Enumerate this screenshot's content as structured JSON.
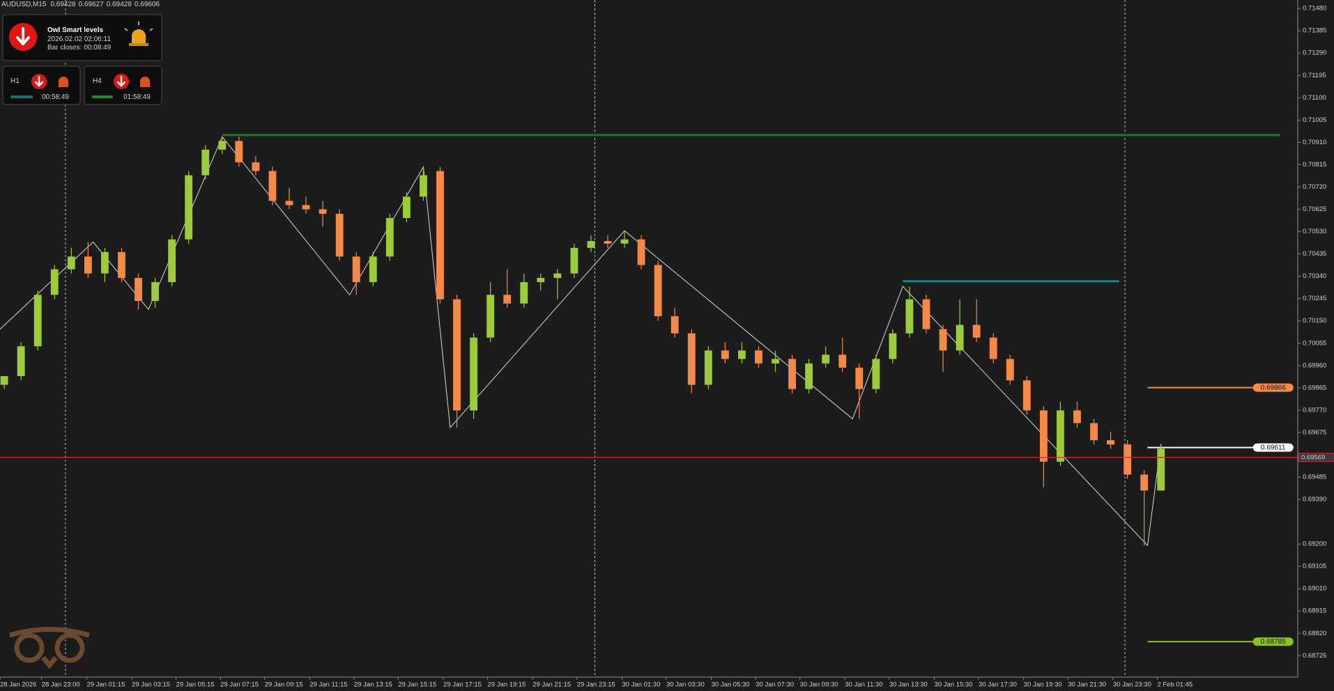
{
  "chart_data": {
    "type": "candlestick",
    "symbol": "AUDUSD,M15",
    "ohlc": [
      0.69428,
      0.69627,
      0.69428,
      0.69606
    ],
    "up_color": "#9ccb3b",
    "down_color": "#f58a48",
    "xlim": [
      -0.254,
      77.16
    ],
    "ylim": [
      0.68634,
      0.71516
    ],
    "open": [
      0.69878,
      0.69915,
      0.70042,
      0.70261,
      0.7037,
      0.70424,
      0.70352,
      0.70443,
      0.70333,
      0.70235,
      0.70315,
      0.70497,
      0.7077,
      0.70879,
      0.70916,
      0.70825,
      0.70788,
      0.70661,
      0.70643,
      0.70625,
      0.70606,
      0.70424,
      0.70315,
      0.70424,
      0.70588,
      0.70679,
      0.70788,
      0.70242,
      0.69769,
      0.70079,
      0.70261,
      0.70224,
      0.70315,
      0.70333,
      0.70352,
      0.70461,
      0.7049,
      0.70479,
      0.70497,
      0.70388,
      0.7017,
      0.70097,
      0.69878,
      0.70024,
      0.69988,
      0.70024,
      0.69969,
      0.69988,
      0.6986,
      0.69969,
      0.70006,
      0.69951,
      0.6986,
      0.69988,
      0.70097,
      0.70242,
      0.70115,
      0.70024,
      0.70133,
      0.70079,
      0.69988,
      0.69897,
      0.69769,
      0.69551,
      0.69769,
      0.69715,
      0.69642,
      0.69624,
      0.69496,
      0.69428
    ],
    "high": [
      0.69915,
      0.7006,
      0.70279,
      0.70388,
      0.70461,
      0.70486,
      0.70461,
      0.70461,
      0.70352,
      0.70333,
      0.70515,
      0.70788,
      0.70898,
      0.70934,
      0.70934,
      0.70852,
      0.70807,
      0.70716,
      0.70679,
      0.70661,
      0.70625,
      0.70443,
      0.70443,
      0.70606,
      0.70697,
      0.70806,
      0.70806,
      0.70261,
      0.70097,
      0.70315,
      0.7037,
      0.70352,
      0.70352,
      0.7037,
      0.70479,
      0.70515,
      0.70515,
      0.70534,
      0.70515,
      0.70406,
      0.70206,
      0.70115,
      0.70042,
      0.7006,
      0.7006,
      0.70042,
      0.70024,
      0.70006,
      0.69988,
      0.70042,
      0.70079,
      0.69969,
      0.70006,
      0.70115,
      0.70297,
      0.70261,
      0.70133,
      0.70242,
      0.70242,
      0.70097,
      0.70006,
      0.69915,
      0.69787,
      0.69806,
      0.69806,
      0.69733,
      0.69678,
      0.69642,
      0.69515,
      0.69627
    ],
    "low": [
      0.6986,
      0.69897,
      0.70024,
      0.70242,
      0.70352,
      0.70333,
      0.70315,
      0.70315,
      0.70199,
      0.70206,
      0.70297,
      0.70479,
      0.70752,
      0.70861,
      0.70807,
      0.7077,
      0.70643,
      0.70625,
      0.70606,
      0.70552,
      0.70406,
      0.70261,
      0.70297,
      0.70406,
      0.7057,
      0.70661,
      0.70224,
      0.69696,
      0.69733,
      0.7006,
      0.70206,
      0.70206,
      0.70279,
      0.70242,
      0.70333,
      0.70443,
      0.70461,
      0.70461,
      0.7037,
      0.70151,
      0.70079,
      0.69842,
      0.6986,
      0.69969,
      0.69969,
      0.69951,
      0.69933,
      0.69842,
      0.69842,
      0.69951,
      0.69933,
      0.69733,
      0.69842,
      0.69969,
      0.70079,
      0.70097,
      0.69933,
      0.70006,
      0.7006,
      0.69969,
      0.69878,
      0.69751,
      0.69442,
      0.69533,
      0.69696,
      0.69624,
      0.69605,
      0.69478,
      0.69194,
      0.69428
    ],
    "close": [
      0.69915,
      0.70042,
      0.70261,
      0.7037,
      0.70424,
      0.70352,
      0.70443,
      0.70333,
      0.70235,
      0.70315,
      0.70497,
      0.7077,
      0.70879,
      0.70916,
      0.70825,
      0.70788,
      0.70661,
      0.70643,
      0.70625,
      0.70606,
      0.70424,
      0.70315,
      0.70424,
      0.70588,
      0.70679,
      0.7077,
      0.70242,
      0.69769,
      0.70079,
      0.70261,
      0.70224,
      0.70315,
      0.70333,
      0.70352,
      0.70461,
      0.7049,
      0.70479,
      0.70497,
      0.70388,
      0.7017,
      0.70097,
      0.69878,
      0.70024,
      0.69988,
      0.70024,
      0.69969,
      0.69988,
      0.6986,
      0.69969,
      0.70006,
      0.69951,
      0.6986,
      0.69988,
      0.70097,
      0.70242,
      0.70115,
      0.70024,
      0.70133,
      0.70079,
      0.69988,
      0.69897,
      0.69769,
      0.69551,
      0.69769,
      0.69715,
      0.69642,
      0.69624,
      0.69496,
      0.69428,
      0.69606
    ],
    "zigzag": {
      "color": "#d8d8d8",
      "x": [
        -0.25,
        5.3,
        8.6,
        13,
        20.6,
        25,
        26.6,
        37,
        50.6,
        53.6,
        68.2,
        69
      ],
      "values": [
        0.70115,
        0.70486,
        0.70199,
        0.70934,
        0.70261,
        0.70806,
        0.69696,
        0.70534,
        0.69733,
        0.70297,
        0.69194,
        0.69627
      ]
    },
    "levels": [
      {
        "value": 0.70941,
        "x_from": 13,
        "x_to": 76.1,
        "color": "#1f7a1f",
        "labeled": false
      },
      {
        "value": 0.70319,
        "x_from": 53.6,
        "x_to": 66.5,
        "color": "#1b7f8c",
        "labeled": false
      },
      {
        "value": 0.69866,
        "x_from": 68.2,
        "x_to": 76.9,
        "color": "#f58a48",
        "labeled": true
      },
      {
        "value": 0.69611,
        "x_from": 68.2,
        "x_to": 76.9,
        "color": "#ffffff",
        "labeled": true
      },
      {
        "value": 0.68785,
        "x_from": 68.2,
        "x_to": 76.9,
        "color": "#8cc21e",
        "labeled": true
      }
    ],
    "bid": {
      "value": 0.69569,
      "color": "#d42a2a"
    },
    "period_separators": [
      3.65,
      35.23,
      66.85
    ],
    "yticks": [
      {
        "value": 0.7148,
        "label": "0.71480"
      },
      {
        "value": 0.71385,
        "label": "0.71385"
      },
      {
        "value": 0.7129,
        "label": "0.71290"
      },
      {
        "value": 0.71195,
        "label": "0.71195"
      },
      {
        "value": 0.711,
        "label": "0.71100"
      },
      {
        "value": 0.71005,
        "label": "0.71005"
      },
      {
        "value": 0.7091,
        "label": "0.70910"
      },
      {
        "value": 0.70815,
        "label": "0.70815"
      },
      {
        "value": 0.7072,
        "label": "0.70720"
      },
      {
        "value": 0.70625,
        "label": "0.70625"
      },
      {
        "value": 0.7053,
        "label": "0.70530"
      },
      {
        "value": 0.70435,
        "label": "0.70435"
      },
      {
        "value": 0.7034,
        "label": "0.70340"
      },
      {
        "value": 0.70245,
        "label": "0.70245"
      },
      {
        "value": 0.7015,
        "label": "0.70150"
      },
      {
        "value": 0.70055,
        "label": "0.70055"
      },
      {
        "value": 0.6996,
        "label": "0.69960"
      },
      {
        "value": 0.69865,
        "label": "0.69865"
      },
      {
        "value": 0.6977,
        "label": "0.69770"
      },
      {
        "value": 0.69675,
        "label": "0.69675"
      },
      {
        "value": 0.69485,
        "label": "0.69485"
      },
      {
        "value": 0.6939,
        "label": "0.69390"
      },
      {
        "value": 0.692,
        "label": "0.69200"
      },
      {
        "value": 0.69105,
        "label": "0.69105"
      },
      {
        "value": 0.6901,
        "label": "0.69010"
      },
      {
        "value": 0.68915,
        "label": "0.68915"
      },
      {
        "value": 0.6882,
        "label": "0.68820"
      },
      {
        "value": 0.68725,
        "label": "0.68725"
      }
    ],
    "xticks": [
      {
        "value": -0.25,
        "label": "28 Jan 2026"
      },
      {
        "value": 2.23,
        "label": "28 Jan 23:00"
      },
      {
        "value": 4.92,
        "label": "29 Jan 01:15"
      },
      {
        "value": 7.61,
        "label": "29 Jan 03:15"
      },
      {
        "value": 10.25,
        "label": "29 Jan 05:15"
      },
      {
        "value": 12.89,
        "label": "29 Jan 07:15"
      },
      {
        "value": 15.53,
        "label": "29 Jan 09:15"
      },
      {
        "value": 18.22,
        "label": "29 Jan 11:15"
      },
      {
        "value": 20.86,
        "label": "29 Jan 13:15"
      },
      {
        "value": 23.5,
        "label": "29 Jan 15:15"
      },
      {
        "value": 26.19,
        "label": "29 Jan 17:15"
      },
      {
        "value": 28.83,
        "label": "29 Jan 19:15"
      },
      {
        "value": 31.52,
        "label": "29 Jan 21:15"
      },
      {
        "value": 34.16,
        "label": "29 Jan 23:15"
      },
      {
        "value": 36.85,
        "label": "30 Jan 01:30"
      },
      {
        "value": 39.49,
        "label": "30 Jan 03:30"
      },
      {
        "value": 42.18,
        "label": "30 Jan 05:30"
      },
      {
        "value": 44.82,
        "label": "30 Jan 07:30"
      },
      {
        "value": 47.46,
        "label": "30 Jan 09:30"
      },
      {
        "value": 50.15,
        "label": "30 Jan 11:30"
      },
      {
        "value": 52.79,
        "label": "30 Jan 13:30"
      },
      {
        "value": 55.48,
        "label": "30 Jan 15:30"
      },
      {
        "value": 58.12,
        "label": "30 Jan 17:30"
      },
      {
        "value": 60.81,
        "label": "30 Jan 19:30"
      },
      {
        "value": 63.45,
        "label": "30 Jan 21:30"
      },
      {
        "value": 66.14,
        "label": "30 Jan 23:30"
      },
      {
        "value": 68.78,
        "label": "2 Feb 01:45"
      }
    ]
  },
  "panel": {
    "title": "Owl Smart levels",
    "datetime": "2026.02.02 02:06:11",
    "bar_closes": "Bar closes: 00:08:49",
    "timeframes": [
      {
        "name": "H1",
        "countdown": "00:58:49"
      },
      {
        "name": "H4",
        "countdown": "01:58:49"
      }
    ]
  }
}
